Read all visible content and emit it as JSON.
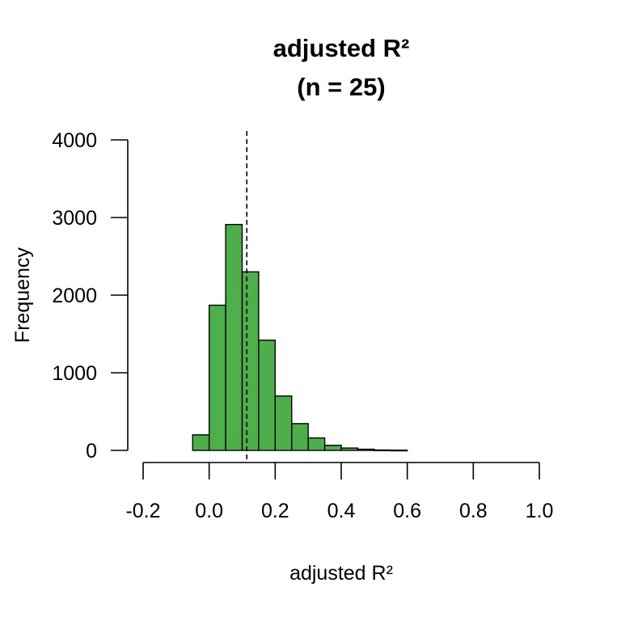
{
  "chart_data": {
    "type": "bar",
    "title_line1": "adjusted R²",
    "title_line2": "(n = 25)",
    "xlabel": "adjusted R²",
    "ylabel": "Frequency",
    "xlim": [
      -0.2,
      1.0
    ],
    "ylim": [
      0,
      4000
    ],
    "x_ticks": [
      -0.2,
      0.0,
      0.2,
      0.4,
      0.6,
      0.8,
      1.0
    ],
    "x_tick_labels": [
      "-0.2",
      "0.0",
      "0.2",
      "0.4",
      "0.6",
      "0.8",
      "1.0"
    ],
    "y_ticks": [
      0,
      1000,
      2000,
      3000,
      4000
    ],
    "y_tick_labels": [
      "0",
      "1000",
      "2000",
      "3000",
      "4000"
    ],
    "bar_color": "#4DAF4A",
    "bins": [
      {
        "x0": -0.05,
        "x1": 0.0,
        "count": 200
      },
      {
        "x0": 0.0,
        "x1": 0.05,
        "count": 1870
      },
      {
        "x0": 0.05,
        "x1": 0.1,
        "count": 2910
      },
      {
        "x0": 0.1,
        "x1": 0.15,
        "count": 2300
      },
      {
        "x0": 0.15,
        "x1": 0.2,
        "count": 1420
      },
      {
        "x0": 0.2,
        "x1": 0.25,
        "count": 700
      },
      {
        "x0": 0.25,
        "x1": 0.3,
        "count": 345
      },
      {
        "x0": 0.3,
        "x1": 0.35,
        "count": 160
      },
      {
        "x0": 0.35,
        "x1": 0.4,
        "count": 65
      },
      {
        "x0": 0.4,
        "x1": 0.45,
        "count": 30
      },
      {
        "x0": 0.45,
        "x1": 0.5,
        "count": 15
      },
      {
        "x0": 0.5,
        "x1": 0.55,
        "count": 5
      },
      {
        "x0": 0.55,
        "x1": 0.6,
        "count": 3
      }
    ],
    "reference_line_x": 0.114,
    "reference_line_style": "dashed",
    "grid": false,
    "legend": "none"
  }
}
